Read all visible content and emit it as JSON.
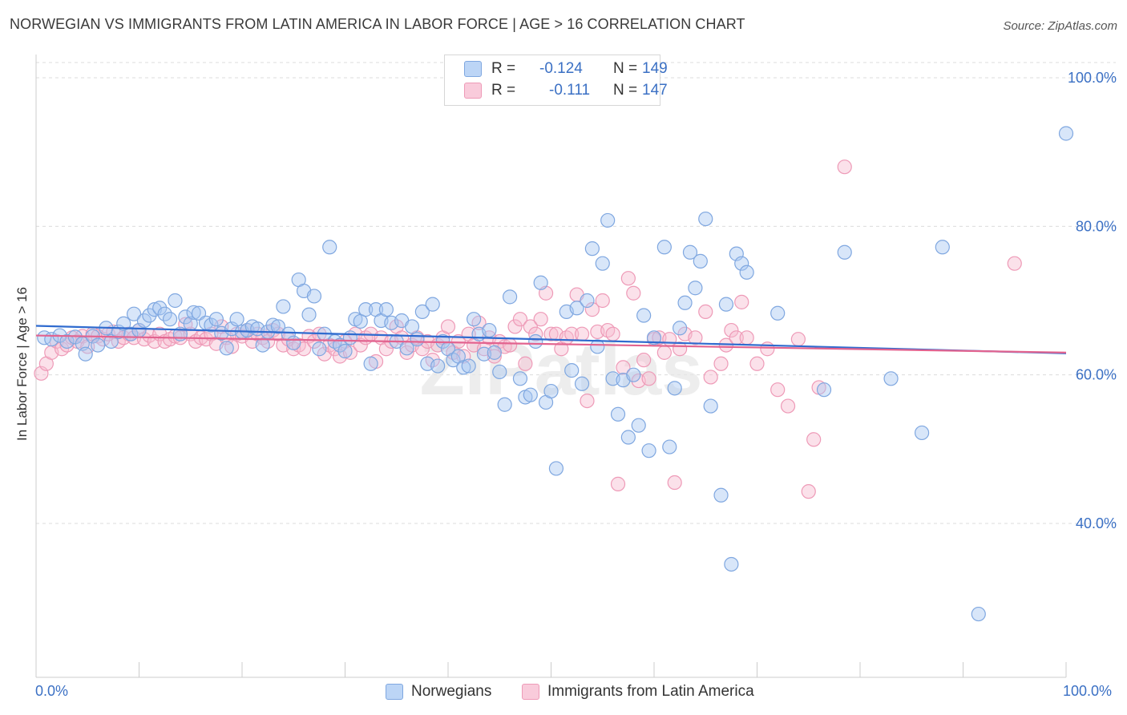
{
  "header": {
    "title": "NORWEGIAN VS IMMIGRANTS FROM LATIN AMERICA IN LABOR FORCE | AGE > 16 CORRELATION CHART",
    "source": "Source: ZipAtlas.com"
  },
  "legend_top": {
    "rows": [
      {
        "r_label": "R =",
        "r_value": "-0.124",
        "n_label": "N =",
        "n_value": "149"
      },
      {
        "r_label": "R =",
        "r_value": "-0.111",
        "n_label": "N =",
        "n_value": "147"
      }
    ]
  },
  "legend_bottom": {
    "items": [
      "Norwegians",
      "Immigrants from Latin America"
    ]
  },
  "colors": {
    "norwegians_fill": "#a9c8f2",
    "norwegians_stroke": "#7fa7e0",
    "norwegians_line": "#2f6bcf",
    "latin_fill": "#f7bcd0",
    "latin_stroke": "#ee9ab7",
    "latin_line": "#e2638f",
    "axis_text": "#3b70c4",
    "grid": "#dcdcdc"
  },
  "chart_data": {
    "type": "scatter",
    "title": "NORWEGIAN VS IMMIGRANTS FROM LATIN AMERICA IN LABOR FORCE | AGE > 16 CORRELATION CHART",
    "xlabel": "",
    "ylabel": "In Labor Force | Age > 16",
    "xlim": [
      0,
      100
    ],
    "ylim": [
      20,
      102
    ],
    "x_tick_labels": [
      "0.0%",
      "100.0%"
    ],
    "y_ticks": [
      40,
      60,
      80,
      100
    ],
    "y_tick_labels": [
      "40.0%",
      "60.0%",
      "80.0%",
      "100.0%"
    ],
    "grid": true,
    "legend_position": "top-center",
    "series": [
      {
        "name": "Norwegians",
        "trend": {
          "x0": 0,
          "y0": 66.6,
          "x1": 100,
          "y1": 62.9
        },
        "points": [
          [
            0.8,
            65.0
          ],
          [
            1.5,
            64.8
          ],
          [
            2.3,
            65.3
          ],
          [
            3.0,
            64.5
          ],
          [
            3.8,
            65.1
          ],
          [
            4.5,
            64.2
          ],
          [
            4.8,
            62.8
          ],
          [
            5.5,
            65.2
          ],
          [
            6.0,
            64.0
          ],
          [
            6.8,
            66.3
          ],
          [
            7.3,
            64.5
          ],
          [
            8.0,
            65.8
          ],
          [
            8.5,
            66.9
          ],
          [
            9.2,
            65.5
          ],
          [
            9.5,
            68.2
          ],
          [
            10.0,
            66.0
          ],
          [
            10.5,
            67.3
          ],
          [
            11.0,
            68.0
          ],
          [
            11.5,
            68.8
          ],
          [
            12.0,
            69.0
          ],
          [
            12.5,
            68.2
          ],
          [
            13.0,
            67.5
          ],
          [
            13.5,
            70.0
          ],
          [
            14.0,
            65.5
          ],
          [
            14.5,
            67.8
          ],
          [
            15.0,
            66.9
          ],
          [
            15.3,
            68.4
          ],
          [
            15.8,
            68.3
          ],
          [
            16.5,
            67.0
          ],
          [
            17.0,
            66.7
          ],
          [
            17.5,
            67.5
          ],
          [
            18.0,
            65.6
          ],
          [
            18.5,
            63.6
          ],
          [
            19.0,
            66.2
          ],
          [
            19.5,
            67.5
          ],
          [
            20.0,
            65.8
          ],
          [
            20.5,
            66.0
          ],
          [
            21.0,
            66.5
          ],
          [
            21.5,
            66.2
          ],
          [
            22.0,
            64.0
          ],
          [
            22.5,
            65.8
          ],
          [
            23.0,
            66.7
          ],
          [
            23.5,
            66.5
          ],
          [
            24.0,
            69.2
          ],
          [
            24.5,
            65.5
          ],
          [
            25.0,
            64.3
          ],
          [
            25.5,
            72.8
          ],
          [
            26.0,
            71.3
          ],
          [
            26.5,
            68.1
          ],
          [
            27.0,
            70.6
          ],
          [
            27.5,
            63.5
          ],
          [
            28.0,
            65.5
          ],
          [
            28.5,
            77.2
          ],
          [
            29.0,
            64.5
          ],
          [
            29.5,
            64.0
          ],
          [
            30.0,
            63.2
          ],
          [
            30.5,
            65.0
          ],
          [
            31.0,
            67.5
          ],
          [
            31.5,
            67.2
          ],
          [
            32.0,
            68.8
          ],
          [
            32.5,
            61.5
          ],
          [
            33.0,
            68.8
          ],
          [
            33.5,
            67.3
          ],
          [
            34.0,
            68.8
          ],
          [
            34.5,
            67.0
          ],
          [
            35.0,
            64.5
          ],
          [
            35.5,
            67.3
          ],
          [
            36.0,
            63.6
          ],
          [
            36.5,
            66.5
          ],
          [
            37.0,
            64.8
          ],
          [
            37.5,
            68.5
          ],
          [
            38.0,
            61.5
          ],
          [
            38.5,
            69.5
          ],
          [
            39.0,
            61.2
          ],
          [
            39.5,
            64.5
          ],
          [
            40.0,
            63.5
          ],
          [
            40.5,
            62.0
          ],
          [
            41.0,
            62.5
          ],
          [
            41.5,
            61.0
          ],
          [
            42.0,
            61.2
          ],
          [
            42.5,
            67.5
          ],
          [
            43.0,
            65.5
          ],
          [
            43.5,
            62.8
          ],
          [
            44.0,
            66.0
          ],
          [
            44.5,
            63.0
          ],
          [
            45.0,
            60.4
          ],
          [
            45.5,
            56.0
          ],
          [
            46.0,
            70.5
          ],
          [
            47.0,
            59.5
          ],
          [
            47.5,
            57.0
          ],
          [
            48.0,
            57.3
          ],
          [
            48.5,
            64.5
          ],
          [
            49.0,
            72.4
          ],
          [
            49.5,
            56.3
          ],
          [
            50.0,
            57.8
          ],
          [
            50.5,
            47.4
          ],
          [
            51.5,
            68.5
          ],
          [
            52.0,
            60.6
          ],
          [
            52.5,
            69.0
          ],
          [
            53.0,
            58.8
          ],
          [
            53.5,
            70.0
          ],
          [
            54.0,
            77.0
          ],
          [
            54.5,
            63.8
          ],
          [
            55.0,
            75.0
          ],
          [
            55.5,
            80.8
          ],
          [
            56.0,
            59.5
          ],
          [
            56.5,
            54.7
          ],
          [
            57.0,
            59.3
          ],
          [
            57.5,
            51.6
          ],
          [
            58.0,
            60.0
          ],
          [
            58.5,
            53.2
          ],
          [
            59.0,
            68.0
          ],
          [
            59.5,
            49.8
          ],
          [
            60.0,
            65.0
          ],
          [
            61.0,
            77.2
          ],
          [
            61.5,
            50.3
          ],
          [
            62.0,
            58.2
          ],
          [
            62.5,
            66.3
          ],
          [
            63.0,
            69.7
          ],
          [
            63.5,
            76.5
          ],
          [
            64.0,
            71.7
          ],
          [
            64.5,
            75.3
          ],
          [
            65.0,
            81.0
          ],
          [
            65.5,
            55.8
          ],
          [
            66.5,
            43.8
          ],
          [
            67.0,
            69.5
          ],
          [
            67.5,
            34.5
          ],
          [
            68.0,
            76.3
          ],
          [
            68.5,
            75.0
          ],
          [
            69.0,
            73.8
          ],
          [
            72.0,
            68.3
          ],
          [
            76.5,
            58.0
          ],
          [
            78.5,
            76.5
          ],
          [
            83.0,
            59.5
          ],
          [
            86.0,
            52.2
          ],
          [
            88.0,
            77.2
          ],
          [
            91.5,
            27.8
          ],
          [
            100.0,
            92.5
          ]
        ]
      },
      {
        "name": "Immigrants from Latin America",
        "trend": {
          "x0": 0,
          "y0": 65.3,
          "x1": 100,
          "y1": 63.0
        },
        "points": [
          [
            0.5,
            60.2
          ],
          [
            1.0,
            61.5
          ],
          [
            1.5,
            63.0
          ],
          [
            2.0,
            64.5
          ],
          [
            2.5,
            63.5
          ],
          [
            3.0,
            64.0
          ],
          [
            3.5,
            65.0
          ],
          [
            4.0,
            64.5
          ],
          [
            4.5,
            65.2
          ],
          [
            5.0,
            63.8
          ],
          [
            5.5,
            65.5
          ],
          [
            6.0,
            65.2
          ],
          [
            6.5,
            64.8
          ],
          [
            7.0,
            65.5
          ],
          [
            7.5,
            65.8
          ],
          [
            8.0,
            64.5
          ],
          [
            8.5,
            65.0
          ],
          [
            9.0,
            65.5
          ],
          [
            9.5,
            65.0
          ],
          [
            10.0,
            66.0
          ],
          [
            10.5,
            64.8
          ],
          [
            11.0,
            65.3
          ],
          [
            11.5,
            64.5
          ],
          [
            12.0,
            65.5
          ],
          [
            12.5,
            64.5
          ],
          [
            13.0,
            64.8
          ],
          [
            13.5,
            65.2
          ],
          [
            14.0,
            65.0
          ],
          [
            14.5,
            66.8
          ],
          [
            15.0,
            65.5
          ],
          [
            15.5,
            64.5
          ],
          [
            16.0,
            65.0
          ],
          [
            16.5,
            64.8
          ],
          [
            17.0,
            65.5
          ],
          [
            17.5,
            64.2
          ],
          [
            18.0,
            66.5
          ],
          [
            18.5,
            65.0
          ],
          [
            19.0,
            63.8
          ],
          [
            19.5,
            65.5
          ],
          [
            20.0,
            65.2
          ],
          [
            20.5,
            66.0
          ],
          [
            21.0,
            64.5
          ],
          [
            21.5,
            65.5
          ],
          [
            22.0,
            65.0
          ],
          [
            22.5,
            64.5
          ],
          [
            23.0,
            66.0
          ],
          [
            23.5,
            65.5
          ],
          [
            24.0,
            64.0
          ],
          [
            24.5,
            64.8
          ],
          [
            25.0,
            63.5
          ],
          [
            25.5,
            64.0
          ],
          [
            26.0,
            63.5
          ],
          [
            26.5,
            65.2
          ],
          [
            27.0,
            64.5
          ],
          [
            27.5,
            65.5
          ],
          [
            28.0,
            62.8
          ],
          [
            28.5,
            64.0
          ],
          [
            29.0,
            63.5
          ],
          [
            29.5,
            62.5
          ],
          [
            30.0,
            64.5
          ],
          [
            30.5,
            63.0
          ],
          [
            31.0,
            65.5
          ],
          [
            31.5,
            64.0
          ],
          [
            32.0,
            65.0
          ],
          [
            32.5,
            65.5
          ],
          [
            33.0,
            61.8
          ],
          [
            33.5,
            65.0
          ],
          [
            34.0,
            63.5
          ],
          [
            34.5,
            64.5
          ],
          [
            35.0,
            66.5
          ],
          [
            35.5,
            65.0
          ],
          [
            36.0,
            63.0
          ],
          [
            36.5,
            64.0
          ],
          [
            37.0,
            65.0
          ],
          [
            37.5,
            63.5
          ],
          [
            38.0,
            64.5
          ],
          [
            38.5,
            62.0
          ],
          [
            39.0,
            64.0
          ],
          [
            39.5,
            65.0
          ],
          [
            40.0,
            66.5
          ],
          [
            40.5,
            63.0
          ],
          [
            41.0,
            64.5
          ],
          [
            41.5,
            62.5
          ],
          [
            42.0,
            65.5
          ],
          [
            42.5,
            64.0
          ],
          [
            43.0,
            67.0
          ],
          [
            43.5,
            63.5
          ],
          [
            44.0,
            65.0
          ],
          [
            44.5,
            62.5
          ],
          [
            45.0,
            64.5
          ],
          [
            45.5,
            63.8
          ],
          [
            46.0,
            64.0
          ],
          [
            46.5,
            66.5
          ],
          [
            47.0,
            67.5
          ],
          [
            47.5,
            61.5
          ],
          [
            48.0,
            66.5
          ],
          [
            48.5,
            65.5
          ],
          [
            49.0,
            67.5
          ],
          [
            49.5,
            71.0
          ],
          [
            50.0,
            65.5
          ],
          [
            50.5,
            65.5
          ],
          [
            51.0,
            63.5
          ],
          [
            51.5,
            65.0
          ],
          [
            52.0,
            65.5
          ],
          [
            52.5,
            70.8
          ],
          [
            53.0,
            65.5
          ],
          [
            53.5,
            56.5
          ],
          [
            54.0,
            68.8
          ],
          [
            54.5,
            65.8
          ],
          [
            55.0,
            70.0
          ],
          [
            55.5,
            66.0
          ],
          [
            56.0,
            65.5
          ],
          [
            56.5,
            45.3
          ],
          [
            57.0,
            61.0
          ],
          [
            57.5,
            73.0
          ],
          [
            58.0,
            71.0
          ],
          [
            58.5,
            59.2
          ],
          [
            59.0,
            62.0
          ],
          [
            59.5,
            59.5
          ],
          [
            60.0,
            64.8
          ],
          [
            60.5,
            65.0
          ],
          [
            61.0,
            63.0
          ],
          [
            61.5,
            64.8
          ],
          [
            62.0,
            45.5
          ],
          [
            62.5,
            63.5
          ],
          [
            63.0,
            65.5
          ],
          [
            64.0,
            65.0
          ],
          [
            65.0,
            68.5
          ],
          [
            65.5,
            59.7
          ],
          [
            66.5,
            61.5
          ],
          [
            67.0,
            64.0
          ],
          [
            67.5,
            66.0
          ],
          [
            68.0,
            65.0
          ],
          [
            68.5,
            69.8
          ],
          [
            69.0,
            65.0
          ],
          [
            70.0,
            61.5
          ],
          [
            71.0,
            63.5
          ],
          [
            72.0,
            58.0
          ],
          [
            73.0,
            55.8
          ],
          [
            74.0,
            64.8
          ],
          [
            75.0,
            44.3
          ],
          [
            75.5,
            51.3
          ],
          [
            76.0,
            58.3
          ],
          [
            78.5,
            88.0
          ],
          [
            95.0,
            75.0
          ]
        ]
      }
    ]
  }
}
